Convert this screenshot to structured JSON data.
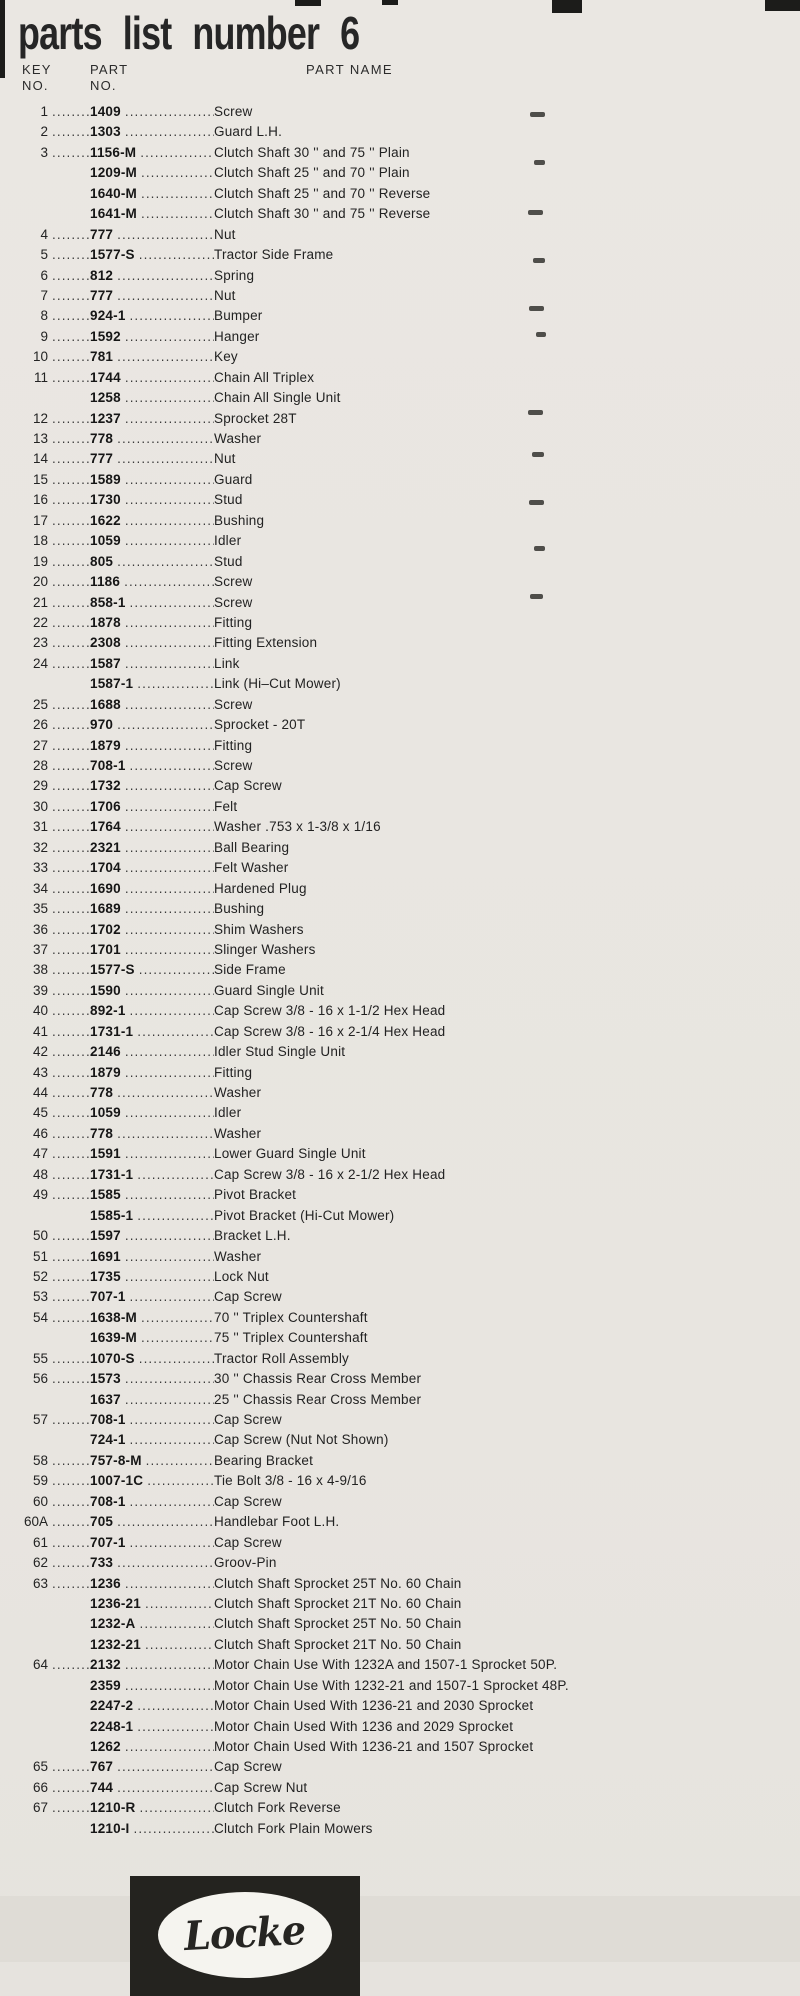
{
  "page": {
    "title": "parts list number 6"
  },
  "colors": {
    "background": "#e9e6e1",
    "ink": "#222222",
    "logo_background": "#24231f",
    "logo_oval": "#f5f4ef"
  },
  "table": {
    "headers": {
      "key_line1": "KEY",
      "key_line2": "NO.",
      "part_line1": "PART",
      "part_line2": "NO.",
      "name": "PART NAME"
    },
    "rows": [
      {
        "key": "1",
        "part": "1409",
        "name": "Screw"
      },
      {
        "key": "2",
        "part": "1303",
        "name": "Guard L.H."
      },
      {
        "key": "3",
        "part": "1156-M",
        "name": "Clutch Shaft 30 '' and 75 '' Plain"
      },
      {
        "key": "",
        "part": "1209-M",
        "name": "Clutch Shaft 25 '' and 70 '' Plain"
      },
      {
        "key": "",
        "part": "1640-M",
        "name": "Clutch Shaft 25 '' and 70 '' Reverse"
      },
      {
        "key": "",
        "part": "1641-M",
        "name": "Clutch Shaft 30 '' and 75 '' Reverse"
      },
      {
        "key": "4",
        "part": "777",
        "name": "Nut"
      },
      {
        "key": "5",
        "part": "1577-S",
        "name": "Tractor Side Frame"
      },
      {
        "key": "6",
        "part": "812",
        "name": "Spring"
      },
      {
        "key": "7",
        "part": "777",
        "name": "Nut"
      },
      {
        "key": "8",
        "part": "924-1",
        "name": "Bumper"
      },
      {
        "key": "9",
        "part": "1592",
        "name": "Hanger"
      },
      {
        "key": "10",
        "part": "781",
        "name": "Key"
      },
      {
        "key": "11",
        "part": "1744",
        "name": "Chain All Triplex"
      },
      {
        "key": "",
        "part": "1258",
        "name": "Chain All Single Unit"
      },
      {
        "key": "12",
        "part": "1237",
        "name": "Sprocket 28T"
      },
      {
        "key": "13",
        "part": "778",
        "name": "Washer"
      },
      {
        "key": "14",
        "part": "777",
        "name": "Nut"
      },
      {
        "key": "15",
        "part": "1589",
        "name": "Guard"
      },
      {
        "key": "16",
        "part": "1730",
        "name": "Stud"
      },
      {
        "key": "17",
        "part": "1622",
        "name": "Bushing"
      },
      {
        "key": "18",
        "part": "1059",
        "name": "Idler"
      },
      {
        "key": "19",
        "part": "805",
        "name": "Stud"
      },
      {
        "key": "20",
        "part": "1186",
        "name": "Screw"
      },
      {
        "key": "21",
        "part": "858-1",
        "name": "Screw"
      },
      {
        "key": "22",
        "part": "1878",
        "name": "Fitting"
      },
      {
        "key": "23",
        "part": "2308",
        "name": "Fitting Extension"
      },
      {
        "key": "24",
        "part": "1587",
        "name": "Link"
      },
      {
        "key": "",
        "part": "1587-1",
        "name": "Link (Hi–Cut Mower)"
      },
      {
        "key": "25",
        "part": "1688",
        "name": "Screw"
      },
      {
        "key": "26",
        "part": "970",
        "name": "Sprocket - 20T"
      },
      {
        "key": "27",
        "part": "1879",
        "name": "Fitting"
      },
      {
        "key": "28",
        "part": "708-1",
        "name": "Screw"
      },
      {
        "key": "29",
        "part": "1732",
        "name": "Cap Screw"
      },
      {
        "key": "30",
        "part": "1706",
        "name": "Felt"
      },
      {
        "key": "31",
        "part": "1764",
        "name": "Washer .753 x 1-3/8 x 1/16"
      },
      {
        "key": "32",
        "part": "2321",
        "name": "Ball Bearing"
      },
      {
        "key": "33",
        "part": "1704",
        "name": "Felt Washer"
      },
      {
        "key": "34",
        "part": "1690",
        "name": "Hardened Plug"
      },
      {
        "key": "35",
        "part": "1689",
        "name": "Bushing"
      },
      {
        "key": "36",
        "part": "1702",
        "name": "Shim Washers"
      },
      {
        "key": "37",
        "part": "1701",
        "name": "Slinger Washers"
      },
      {
        "key": "38",
        "part": "1577-S",
        "name": "Side Frame"
      },
      {
        "key": "39",
        "part": "1590",
        "name": "Guard Single Unit"
      },
      {
        "key": "40",
        "part": "892-1",
        "name": "Cap Screw 3/8 - 16 x 1-1/2 Hex Head"
      },
      {
        "key": "41",
        "part": "1731-1",
        "name": "Cap Screw 3/8 - 16 x 2-1/4 Hex Head"
      },
      {
        "key": "42",
        "part": "2146",
        "name": "Idler Stud Single Unit"
      },
      {
        "key": "43",
        "part": "1879",
        "name": "Fitting"
      },
      {
        "key": "44",
        "part": "778",
        "name": "Washer"
      },
      {
        "key": "45",
        "part": "1059",
        "name": "Idler"
      },
      {
        "key": "46",
        "part": "778",
        "name": "Washer"
      },
      {
        "key": "47",
        "part": "1591",
        "name": "Lower Guard Single Unit"
      },
      {
        "key": "48",
        "part": "1731-1",
        "name": "Cap Screw 3/8 - 16 x 2-1/2 Hex Head"
      },
      {
        "key": "49",
        "part": "1585",
        "name": "Pivot Bracket"
      },
      {
        "key": "",
        "part": "1585-1",
        "name": "Pivot Bracket (Hi-Cut Mower)"
      },
      {
        "key": "50",
        "part": "1597",
        "name": "Bracket L.H."
      },
      {
        "key": "51",
        "part": "1691",
        "name": "Washer"
      },
      {
        "key": "52",
        "part": "1735",
        "name": "Lock Nut"
      },
      {
        "key": "53",
        "part": "707-1",
        "name": "Cap Screw"
      },
      {
        "key": "54",
        "part": "1638-M",
        "name": "70 '' Triplex Countershaft"
      },
      {
        "key": "",
        "part": "1639-M",
        "name": "75 '' Triplex Countershaft"
      },
      {
        "key": "55",
        "part": "1070-S",
        "name": "Tractor Roll Assembly"
      },
      {
        "key": "56",
        "part": "1573",
        "name": "30 '' Chassis Rear Cross Member"
      },
      {
        "key": "",
        "part": "1637",
        "name": "25 '' Chassis Rear Cross Member"
      },
      {
        "key": "57",
        "part": "708-1",
        "name": "Cap Screw"
      },
      {
        "key": "",
        "part": "724-1",
        "name": "Cap Screw (Nut Not Shown)"
      },
      {
        "key": "58",
        "part": "757-8-M",
        "name": "Bearing Bracket"
      },
      {
        "key": "59",
        "part": "1007-1C",
        "name": "Tie Bolt 3/8 - 16 x 4-9/16"
      },
      {
        "key": "60",
        "part": "708-1",
        "name": "Cap Screw"
      },
      {
        "key": "60A",
        "part": "705",
        "name": "Handlebar Foot L.H."
      },
      {
        "key": "61",
        "part": "707-1",
        "name": "Cap Screw"
      },
      {
        "key": "62",
        "part": "733",
        "name": "Groov-Pin"
      },
      {
        "key": "63",
        "part": "1236",
        "name": "Clutch Shaft Sprocket 25T No. 60 Chain"
      },
      {
        "key": "",
        "part": "1236-21",
        "name": "Clutch Shaft Sprocket 21T No. 60 Chain"
      },
      {
        "key": "",
        "part": "1232-A",
        "name": "Clutch Shaft Sprocket 25T No. 50 Chain"
      },
      {
        "key": "",
        "part": "1232-21",
        "name": "Clutch Shaft Sprocket 21T No. 50 Chain"
      },
      {
        "key": "64",
        "part": "2132",
        "name": "Motor Chain Use With 1232A and 1507-1 Sprocket 50P."
      },
      {
        "key": "",
        "part": "2359",
        "name": "Motor Chain Use With 1232-21 and 1507-1 Sprocket 48P."
      },
      {
        "key": "",
        "part": "2247-2",
        "name": "Motor Chain Used With 1236-21 and 2030 Sprocket"
      },
      {
        "key": "",
        "part": "2248-1",
        "name": "Motor Chain Used With 1236 and 2029 Sprocket"
      },
      {
        "key": "",
        "part": "1262",
        "name": "Motor Chain Used With 1236-21 and 1507 Sprocket"
      },
      {
        "key": "65",
        "part": "767",
        "name": "Cap Screw"
      },
      {
        "key": "66",
        "part": "744",
        "name": "Cap Screw Nut"
      },
      {
        "key": "67",
        "part": "1210-R",
        "name": "Clutch Fork Reverse"
      },
      {
        "key": "",
        "part": "1210-I",
        "name": "Clutch Fork Plain Mowers"
      }
    ]
  },
  "logo": {
    "text": "Locke"
  }
}
